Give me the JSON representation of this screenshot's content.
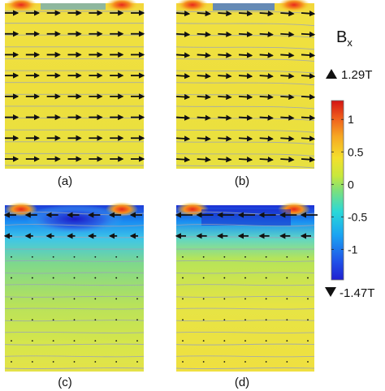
{
  "chart_data": {
    "type": "heatmap",
    "quantity_symbol": "B",
    "quantity_subscript": "x",
    "colorbar": {
      "max_label": "1.29T",
      "min_label": "-1.47T",
      "range": [
        -1.47,
        1.29
      ],
      "ticks": [
        "1",
        "0.5",
        "0",
        "-0.5",
        "-1"
      ],
      "tick_values": [
        1,
        0.5,
        0,
        -0.5,
        -1
      ],
      "colors": [
        "#1f2bd6",
        "#1a7cf0",
        "#22c8e8",
        "#5fe08a",
        "#d8e838",
        "#f4d22c",
        "#f28a1e",
        "#d92414"
      ]
    },
    "panels": [
      {
        "label": "(a)",
        "field": "uniform-positive"
      },
      {
        "label": "(b)",
        "field": "uniform-positive-tilted"
      },
      {
        "label": "(c)",
        "field": "negative-top-layer"
      },
      {
        "label": "(d)",
        "field": "negative-top-band"
      }
    ],
    "colors": {
      "background_field": "#f2dc3c",
      "streamline": "#9aa3b8",
      "arrow": "#111111"
    }
  }
}
